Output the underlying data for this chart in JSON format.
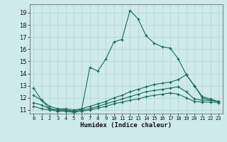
{
  "xlabel": "Humidex (Indice chaleur)",
  "bg_color": "#ceeaea",
  "grid_color": "#b8d8d8",
  "line_color": "#1a6b5a",
  "xlim": [
    -0.5,
    23.5
  ],
  "ylim": [
    10.7,
    19.7
  ],
  "yticks": [
    11,
    12,
    13,
    14,
    15,
    16,
    17,
    18,
    19
  ],
  "xticks": [
    0,
    1,
    2,
    3,
    4,
    5,
    6,
    7,
    8,
    9,
    10,
    11,
    12,
    13,
    14,
    15,
    16,
    17,
    18,
    19,
    20,
    21,
    22,
    23
  ],
  "series": [
    {
      "x": [
        0,
        1,
        2,
        3,
        4,
        5,
        6,
        7,
        8,
        9,
        10,
        11,
        12,
        13,
        14,
        15,
        16,
        17,
        18,
        19,
        20,
        21,
        22,
        23
      ],
      "y": [
        12.8,
        11.8,
        11.1,
        11.0,
        11.0,
        10.8,
        11.1,
        14.5,
        14.2,
        15.2,
        16.6,
        16.8,
        19.2,
        18.5,
        17.1,
        16.5,
        16.2,
        16.1,
        15.2,
        13.9,
        13.0,
        12.0,
        11.8,
        11.7
      ]
    },
    {
      "x": [
        0,
        1,
        2,
        3,
        4,
        5,
        6,
        7,
        8,
        9,
        10,
        11,
        12,
        13,
        14,
        15,
        16,
        17,
        18,
        19,
        20,
        21,
        22,
        23
      ],
      "y": [
        12.2,
        11.8,
        11.3,
        11.1,
        11.1,
        11.0,
        11.1,
        11.3,
        11.5,
        11.7,
        12.0,
        12.2,
        12.5,
        12.7,
        12.9,
        13.1,
        13.2,
        13.3,
        13.5,
        13.9,
        13.0,
        12.1,
        11.9,
        11.7
      ]
    },
    {
      "x": [
        0,
        1,
        2,
        3,
        4,
        5,
        6,
        7,
        8,
        9,
        10,
        11,
        12,
        13,
        14,
        15,
        16,
        17,
        18,
        19,
        20,
        21,
        22,
        23
      ],
      "y": [
        11.6,
        11.4,
        11.1,
        11.0,
        11.0,
        10.9,
        11.0,
        11.1,
        11.3,
        11.5,
        11.7,
        11.9,
        12.1,
        12.3,
        12.5,
        12.6,
        12.7,
        12.8,
        12.9,
        12.5,
        11.9,
        11.8,
        11.8,
        11.7
      ]
    },
    {
      "x": [
        0,
        1,
        2,
        3,
        4,
        5,
        6,
        7,
        8,
        9,
        10,
        11,
        12,
        13,
        14,
        15,
        16,
        17,
        18,
        19,
        20,
        21,
        22,
        23
      ],
      "y": [
        11.3,
        11.1,
        11.0,
        10.9,
        10.9,
        10.8,
        10.9,
        11.0,
        11.15,
        11.3,
        11.5,
        11.65,
        11.8,
        11.9,
        12.1,
        12.2,
        12.3,
        12.4,
        12.3,
        12.0,
        11.7,
        11.65,
        11.65,
        11.6
      ]
    }
  ]
}
